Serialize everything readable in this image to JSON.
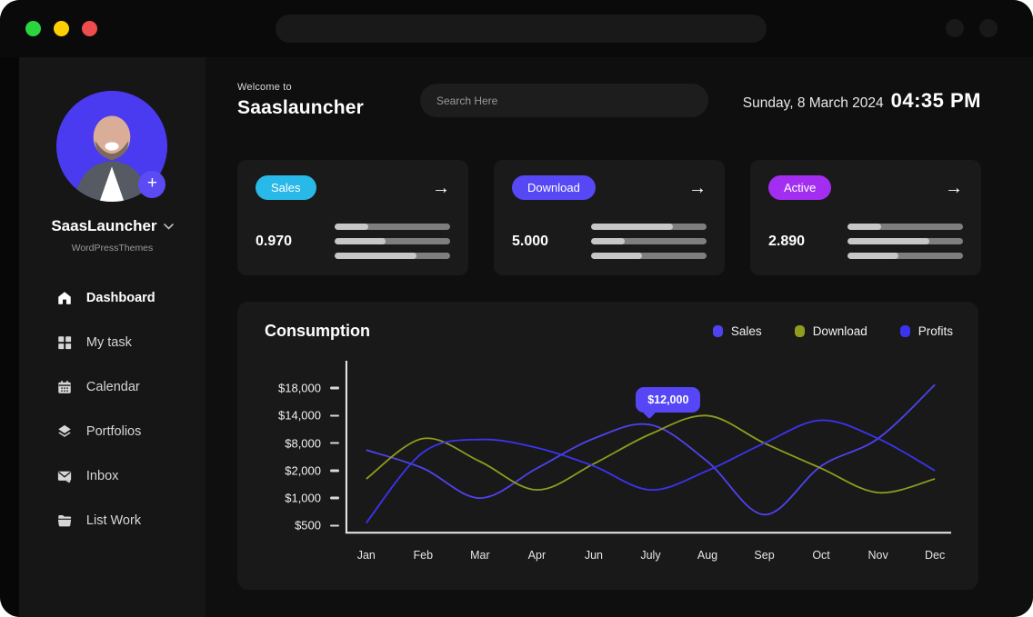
{
  "window": {
    "traffic_lights": [
      {
        "name": "green",
        "color": "#2ad53f"
      },
      {
        "name": "yellow",
        "color": "#ffcf00"
      },
      {
        "name": "red",
        "color": "#ef4d4d"
      }
    ]
  },
  "sidebar": {
    "profile": {
      "name": "SaasLauncher",
      "org": "WordPressThemes",
      "plus_label": "+"
    },
    "menu": [
      {
        "id": "dashboard",
        "label": "Dashboard",
        "icon": "home",
        "active": true
      },
      {
        "id": "my-task",
        "label": "My task",
        "icon": "grid",
        "active": false
      },
      {
        "id": "calendar",
        "label": "Calendar",
        "icon": "calendar",
        "active": false
      },
      {
        "id": "portfolios",
        "label": "Portfolios",
        "icon": "layers",
        "active": false
      },
      {
        "id": "inbox",
        "label": "Inbox",
        "icon": "inbox",
        "active": false
      },
      {
        "id": "list-work",
        "label": "List Work",
        "icon": "folder",
        "active": false
      }
    ]
  },
  "header": {
    "welcome": "Welcome to",
    "app_name": "Saaslauncher",
    "search_placeholder": "Search Here",
    "date": "Sunday, 8 March 2024",
    "time": "04:35 PM"
  },
  "stats": {
    "arrow": "→",
    "cards": [
      {
        "label": "Sales",
        "pill_color": "#29b9e8",
        "value": "0.970",
        "bars": [
          0.29,
          0.44,
          0.71
        ]
      },
      {
        "label": "Download",
        "pill_color": "#5748f5",
        "value": "5.000",
        "bars": [
          0.71,
          0.29,
          0.44
        ]
      },
      {
        "label": "Active",
        "pill_color": "#a32ef2",
        "value": "2.890",
        "bars": [
          0.29,
          0.71,
          0.44
        ]
      }
    ]
  },
  "chart": {
    "title": "Consumption",
    "tooltip": {
      "label": "$12,000",
      "series": "Sales",
      "month": "July",
      "color": "#5646f5"
    }
  },
  "chart_data": {
    "type": "line",
    "title": "Consumption",
    "x": [
      "Jan",
      "Feb",
      "Mar",
      "Apr",
      "Jun",
      "July",
      "Aug",
      "Sep",
      "Oct",
      "Nov",
      "Dec"
    ],
    "y_ticks": [
      "$18,000",
      "$14,000",
      "$8,000",
      "$2,000",
      "$1,000",
      "$500"
    ],
    "y_tick_values": [
      18000,
      14000,
      8000,
      2000,
      1000,
      500
    ],
    "grid": false,
    "legend_position": "top-right",
    "annotation": {
      "text": "$12,000",
      "series": "Sales",
      "x": "July",
      "value": 12000
    },
    "series": [
      {
        "name": "Sales",
        "color": "#4e43ee",
        "values": [
          6500,
          2500,
          1000,
          2500,
          9000,
          12000,
          4000,
          700,
          3000,
          9000,
          18500
        ]
      },
      {
        "name": "Download",
        "color": "#8f9c1e",
        "values": [
          1700,
          9000,
          4000,
          1300,
          3500,
          10000,
          14000,
          8000,
          2500,
          1200,
          1700
        ]
      },
      {
        "name": "Profits",
        "color": "#3a34f0",
        "values": [
          550,
          6000,
          8800,
          7000,
          3000,
          1300,
          2000,
          8000,
          13000,
          9000,
          2000
        ]
      }
    ]
  }
}
